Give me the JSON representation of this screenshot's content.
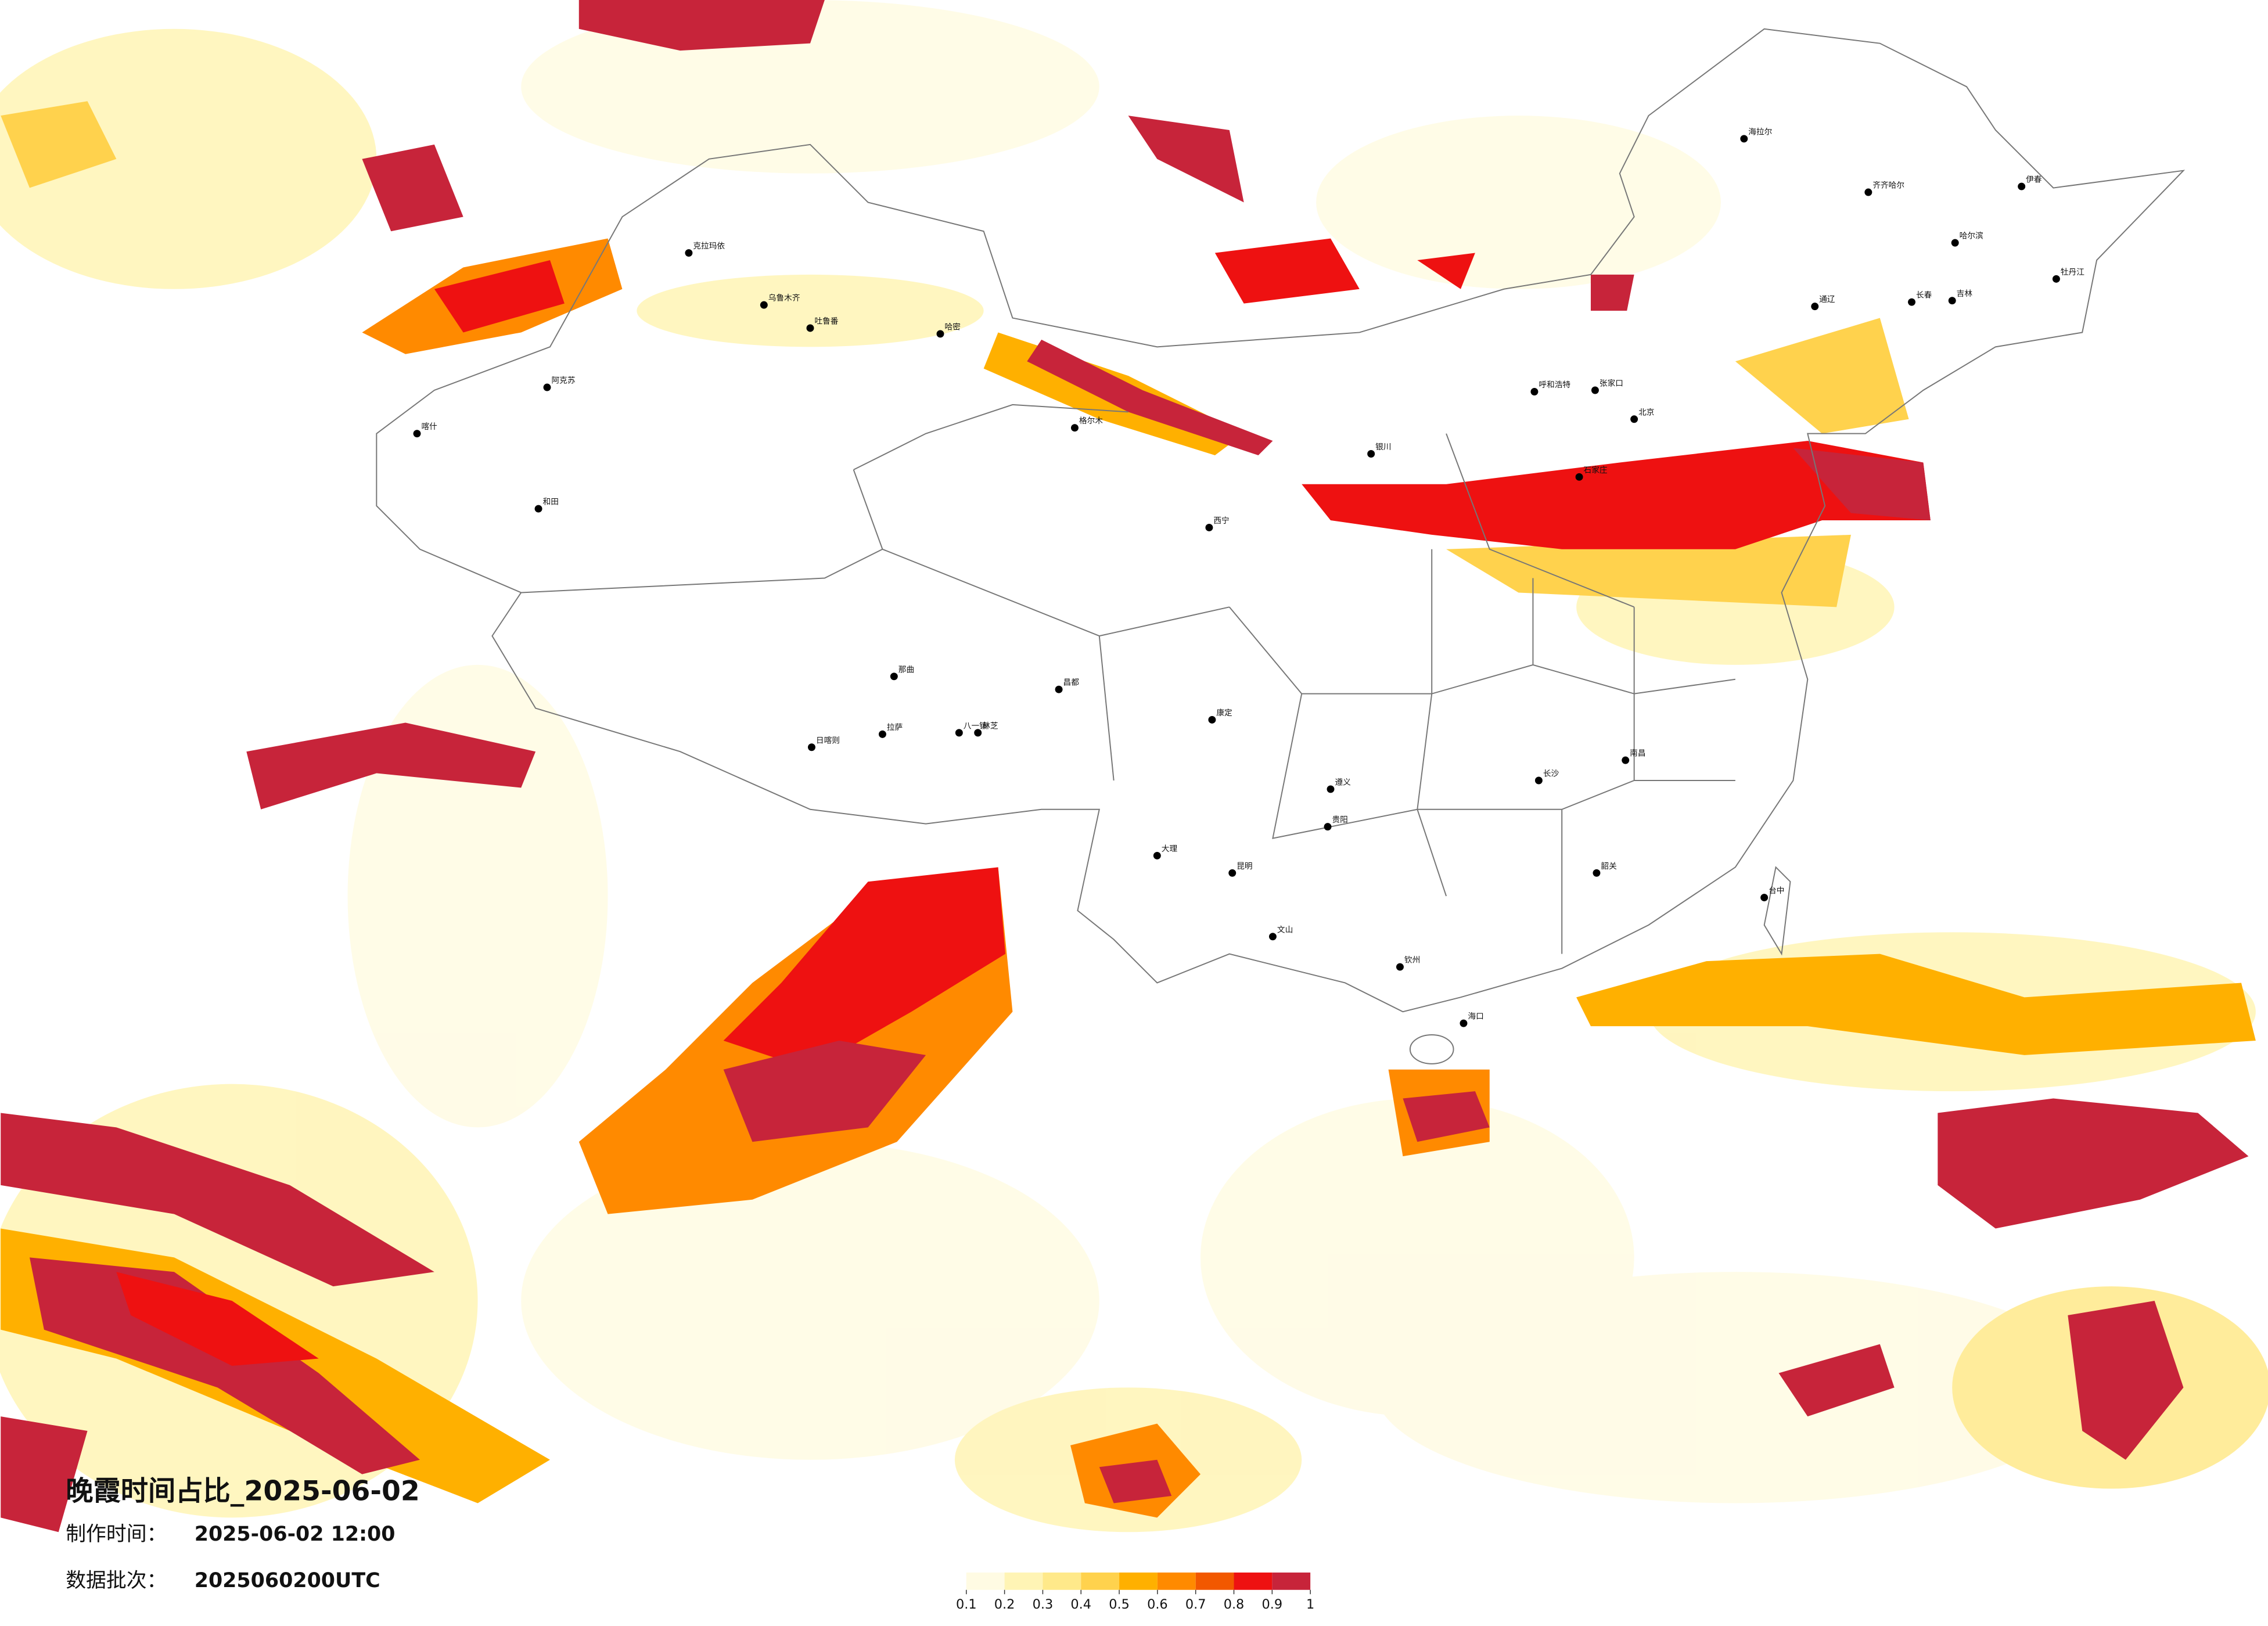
{
  "header": {
    "title": "晚霞时间占比_2025-06-02",
    "made_label": "制作时间：",
    "made_time": "2025-06-02 12:00",
    "batch_label": "数据批次：",
    "batch": "2025060200UTC"
  },
  "legend": {
    "ticks": [
      0.1,
      0.2,
      0.3,
      0.4,
      0.5,
      0.6,
      0.7,
      0.8,
      0.9,
      1
    ],
    "colors": [
      "#fffbe3",
      "#fff4b5",
      "#ffe98a",
      "#ffd24d",
      "#ffb000",
      "#ff8a00",
      "#f25800",
      "#ee1111",
      "#c7243a"
    ]
  },
  "cities": [
    "克拉玛依",
    "乌鲁木齐",
    "吐鲁番",
    "哈密",
    "喀什",
    "和田",
    "阿克苏",
    "格尔木",
    "那曲",
    "拉萨",
    "日喀则",
    "八一镇",
    "林芝",
    "昌都",
    "海拉尔",
    "齐齐哈尔",
    "哈尔滨",
    "伊春",
    "牡丹江",
    "长春",
    "吉林",
    "通辽",
    "呼和浩特",
    "张家口",
    "北京",
    "石家庄",
    "银川",
    "西宁",
    "康定",
    "遵义",
    "贵阳",
    "昆明",
    "大理",
    "长沙",
    "南昌",
    "韶关",
    "台中",
    "海口",
    "钦州",
    "文山"
  ]
}
